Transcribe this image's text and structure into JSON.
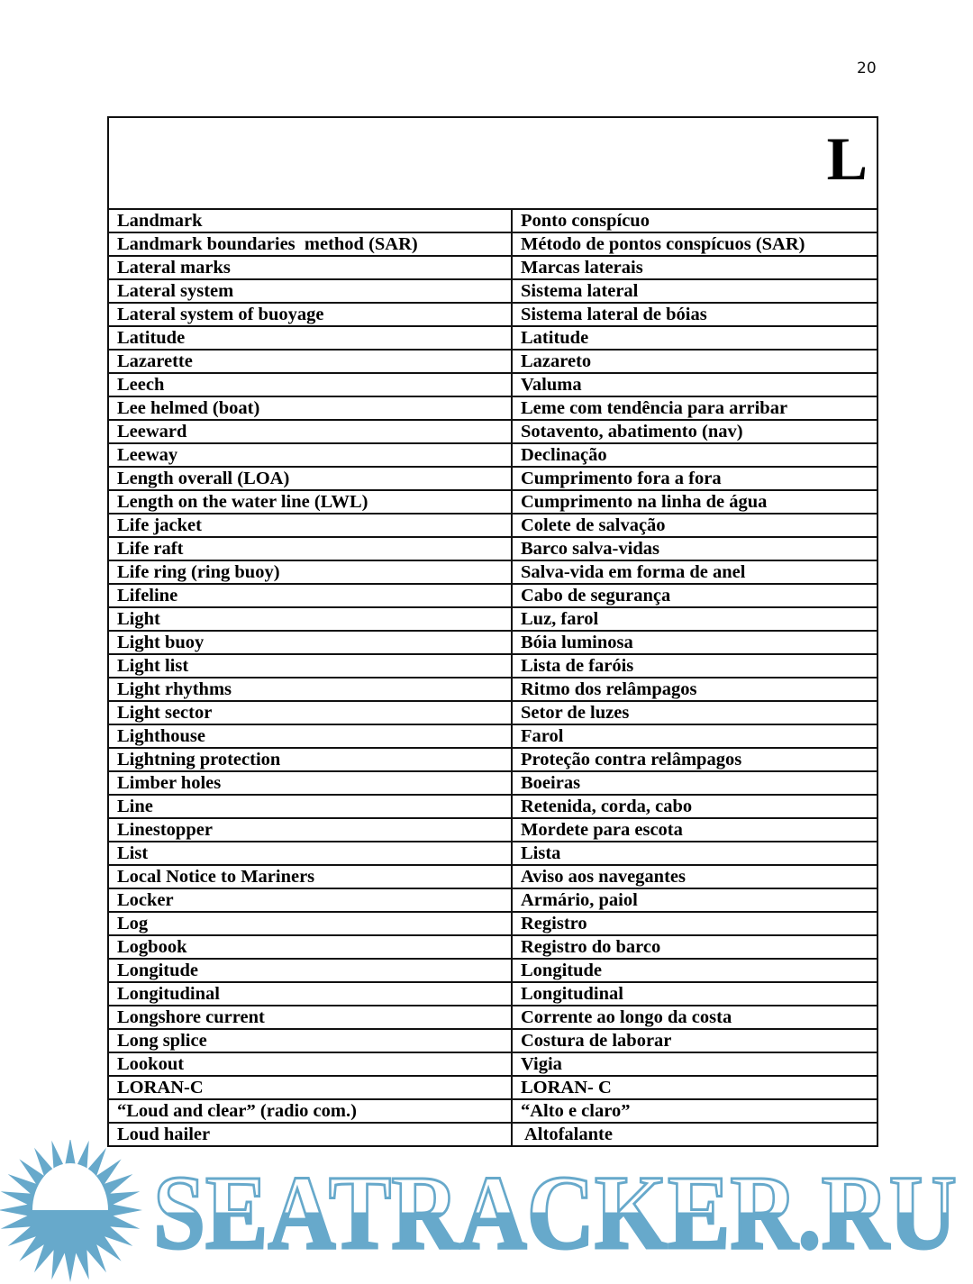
{
  "page_number": "20",
  "section_letter": "L",
  "entries": [
    [
      "Landmark",
      "Ponto conspícuo"
    ],
    [
      "Landmark boundaries  method (SAR)",
      "Método de pontos conspícuos (SAR)"
    ],
    [
      "Lateral marks",
      "Marcas laterais"
    ],
    [
      "Lateral system",
      "Sistema lateral"
    ],
    [
      "Lateral system of buoyage",
      "Sistema lateral de bóias"
    ],
    [
      "Latitude",
      "Latitude"
    ],
    [
      "Lazarette",
      "Lazareto"
    ],
    [
      "Leech",
      "Valuma"
    ],
    [
      "Lee helmed (boat)",
      "Leme com tendência para arribar"
    ],
    [
      "Leeward",
      "Sotavento, abatimento (nav)"
    ],
    [
      "Leeway",
      "Declinação"
    ],
    [
      "Length overall (LOA)",
      "Cumprimento fora a fora"
    ],
    [
      "Length on the water line (LWL)",
      "Cumprimento na linha de água"
    ],
    [
      "Life jacket",
      "Colete de salvação"
    ],
    [
      "Life raft",
      "Barco salva-vidas"
    ],
    [
      "Life ring (ring buoy)",
      "Salva-vida em forma de anel"
    ],
    [
      "Lifeline",
      "Cabo de segurança"
    ],
    [
      "Light",
      "Luz, farol"
    ],
    [
      "Light buoy",
      "Bóia luminosa"
    ],
    [
      "Light list",
      "Lista de faróis"
    ],
    [
      "Light rhythms",
      "Ritmo dos relâmpagos"
    ],
    [
      "Light sector",
      "Setor de luzes"
    ],
    [
      "Lighthouse",
      "Farol"
    ],
    [
      "Lightning protection",
      "Proteção contra relâmpagos"
    ],
    [
      "Limber holes",
      "Boeiras"
    ],
    [
      "Line",
      "Retenida, corda, cabo"
    ],
    [
      "Linestopper",
      "Mordete para escota"
    ],
    [
      "List",
      "Lista"
    ],
    [
      "Local Notice to Mariners",
      "Aviso aos navegantes"
    ],
    [
      "Locker",
      "Armário, paiol"
    ],
    [
      "Log",
      "Registro"
    ],
    [
      "Logbook",
      "Registro do barco"
    ],
    [
      "Longitude",
      "Longitude"
    ],
    [
      "Longitudinal",
      "Longitudinal"
    ],
    [
      "Longshore current",
      "Corrente ao longo da costa"
    ],
    [
      "Long splice",
      "Costura de laborar"
    ],
    [
      "Lookout",
      "Vigia"
    ],
    [
      "LORAN-C",
      "LORAN- C"
    ],
    [
      "“Loud and clear” (radio com.)",
      "“Alto e claro”"
    ],
    [
      "Loud hailer",
      " Altofalante"
    ]
  ],
  "watermark": {
    "text": "SEATRACKER.RU",
    "icon": "sun-icon",
    "color": "#67a9cb"
  }
}
